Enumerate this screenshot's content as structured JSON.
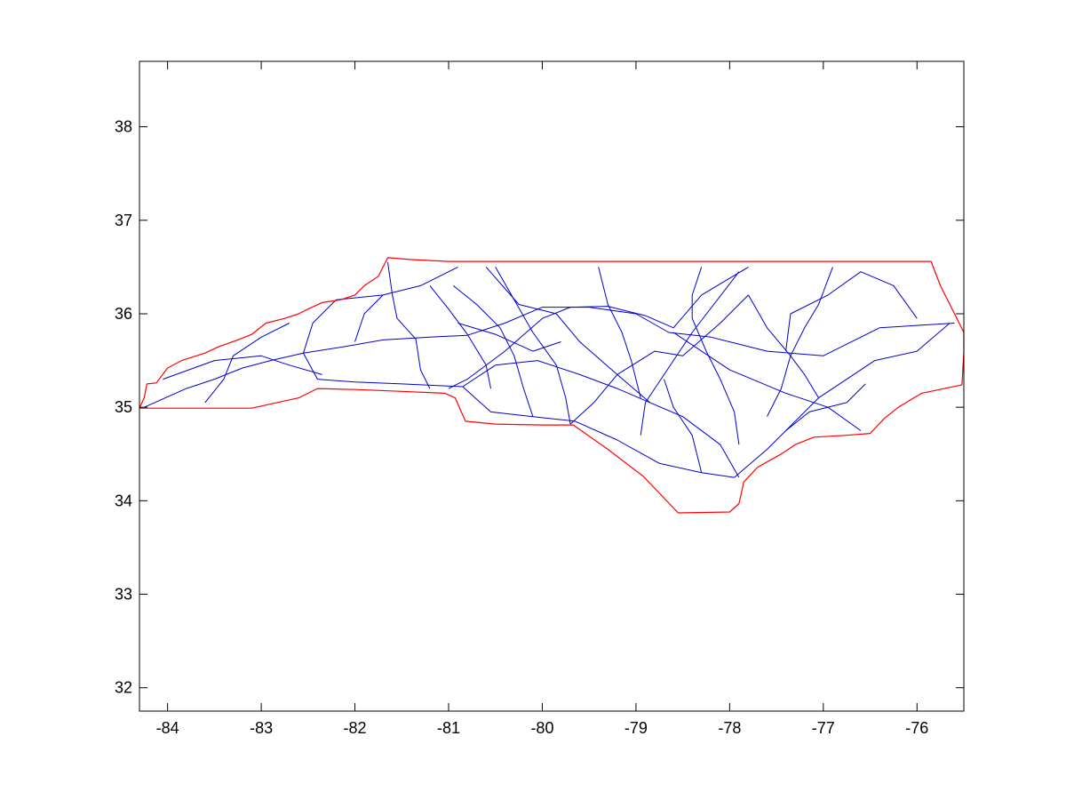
{
  "chart_data": {
    "type": "map",
    "title": "",
    "xlabel": "",
    "ylabel": "",
    "xlim": [
      -84.3,
      -75.5
    ],
    "ylim": [
      31.75,
      38.7
    ],
    "x_ticks": [
      -84,
      -83,
      -82,
      -81,
      -80,
      -79,
      -78,
      -77,
      -76
    ],
    "y_ticks": [
      32,
      33,
      34,
      35,
      36,
      37,
      38
    ],
    "grid": false,
    "colors": {
      "boundary": "#ff0000",
      "roads": "#0000cc",
      "axes": "#000000"
    },
    "layers": [
      {
        "name": "state-boundary",
        "color": "#ff0000",
        "points": [
          [
            -84.3,
            34.99
          ],
          [
            -84.25,
            35.1
          ],
          [
            -84.22,
            35.25
          ],
          [
            -84.12,
            35.26
          ],
          [
            -84.0,
            35.42
          ],
          [
            -83.85,
            35.5
          ],
          [
            -83.6,
            35.58
          ],
          [
            -83.45,
            35.65
          ],
          [
            -83.25,
            35.72
          ],
          [
            -83.1,
            35.78
          ],
          [
            -82.95,
            35.9
          ],
          [
            -82.75,
            35.95
          ],
          [
            -82.6,
            36.0
          ],
          [
            -82.5,
            36.05
          ],
          [
            -82.35,
            36.12
          ],
          [
            -82.15,
            36.15
          ],
          [
            -82.0,
            36.2
          ],
          [
            -81.9,
            36.3
          ],
          [
            -81.75,
            36.4
          ],
          [
            -81.65,
            36.6
          ],
          [
            -81.4,
            36.58
          ],
          [
            -81.0,
            36.56
          ],
          [
            -80.5,
            36.56
          ],
          [
            -80.0,
            36.56
          ],
          [
            -79.5,
            36.56
          ],
          [
            -79.0,
            36.56
          ],
          [
            -78.5,
            36.56
          ],
          [
            -78.0,
            36.56
          ],
          [
            -77.5,
            36.56
          ],
          [
            -77.0,
            36.56
          ],
          [
            -76.5,
            36.56
          ],
          [
            -75.85,
            36.56
          ],
          [
            -75.75,
            36.3
          ],
          [
            -75.6,
            36.0
          ],
          [
            -75.5,
            35.8
          ]
        ],
        "southern_border": [
          [
            -84.3,
            34.99
          ],
          [
            -83.75,
            34.99
          ],
          [
            -83.1,
            34.99
          ],
          [
            -82.6,
            35.1
          ],
          [
            -82.4,
            35.2
          ],
          [
            -82.0,
            35.19
          ],
          [
            -81.5,
            35.17
          ],
          [
            -81.04,
            35.15
          ],
          [
            -80.93,
            35.1
          ],
          [
            -80.82,
            34.85
          ],
          [
            -80.5,
            34.82
          ],
          [
            -80.0,
            34.81
          ],
          [
            -79.67,
            34.81
          ],
          [
            -79.3,
            34.55
          ],
          [
            -78.92,
            34.26
          ],
          [
            -78.55,
            33.87
          ],
          [
            -78.0,
            33.88
          ],
          [
            -77.9,
            33.97
          ]
        ],
        "coast": [
          [
            -77.9,
            33.97
          ],
          [
            -77.85,
            34.2
          ],
          [
            -77.7,
            34.36
          ],
          [
            -77.45,
            34.5
          ],
          [
            -77.3,
            34.6
          ],
          [
            -77.1,
            34.68
          ],
          [
            -76.75,
            34.7
          ],
          [
            -76.5,
            34.72
          ],
          [
            -76.35,
            34.88
          ],
          [
            -76.2,
            35.0
          ],
          [
            -75.95,
            35.15
          ],
          [
            -75.52,
            35.24
          ],
          [
            -75.5,
            35.6
          ],
          [
            -75.5,
            35.8
          ]
        ]
      },
      {
        "name": "road-network",
        "color": "#0000cc",
        "routes": [
          [
            [
              -84.25,
              35.0
            ],
            [
              -83.8,
              35.2
            ],
            [
              -83.5,
              35.3
            ],
            [
              -83.2,
              35.42
            ],
            [
              -82.9,
              35.5
            ],
            [
              -82.55,
              35.58
            ],
            [
              -82.1,
              35.65
            ],
            [
              -81.7,
              35.72
            ],
            [
              -81.2,
              35.75
            ],
            [
              -80.8,
              35.77
            ],
            [
              -80.4,
              35.9
            ],
            [
              -80.0,
              36.07
            ],
            [
              -79.5,
              36.07
            ],
            [
              -79.0,
              36.0
            ],
            [
              -78.65,
              35.8
            ],
            [
              -78.2,
              35.75
            ],
            [
              -77.6,
              35.6
            ],
            [
              -77.0,
              35.55
            ],
            [
              -76.4,
              35.85
            ],
            [
              -75.6,
              35.9
            ]
          ],
          [
            [
              -81.0,
              35.2
            ],
            [
              -80.8,
              35.3
            ],
            [
              -80.4,
              35.6
            ],
            [
              -80.0,
              35.95
            ],
            [
              -79.7,
              36.07
            ],
            [
              -79.3,
              36.08
            ],
            [
              -78.9,
              35.98
            ],
            [
              -78.6,
              35.85
            ],
            [
              -78.3,
              36.2
            ],
            [
              -77.8,
              36.5
            ]
          ],
          [
            [
              -77.9,
              34.25
            ],
            [
              -78.1,
              34.6
            ],
            [
              -78.5,
              34.9
            ],
            [
              -78.85,
              35.05
            ],
            [
              -79.2,
              35.35
            ],
            [
              -79.6,
              35.7
            ],
            [
              -79.85,
              36.0
            ],
            [
              -80.25,
              36.1
            ],
            [
              -80.6,
              36.5
            ]
          ],
          [
            [
              -78.95,
              34.7
            ],
            [
              -78.9,
              35.05
            ],
            [
              -78.6,
              35.5
            ],
            [
              -78.4,
              35.8
            ],
            [
              -77.9,
              36.45
            ]
          ],
          [
            [
              -82.55,
              35.58
            ],
            [
              -82.45,
              35.9
            ],
            [
              -82.2,
              36.15
            ],
            [
              -81.7,
              36.2
            ],
            [
              -81.3,
              36.3
            ],
            [
              -80.9,
              36.5
            ]
          ],
          [
            [
              -82.55,
              35.58
            ],
            [
              -82.4,
              35.3
            ],
            [
              -82.0,
              35.27
            ],
            [
              -81.5,
              35.25
            ],
            [
              -80.85,
              35.22
            ]
          ],
          [
            [
              -80.85,
              35.22
            ],
            [
              -80.5,
              35.45
            ],
            [
              -80.05,
              35.5
            ],
            [
              -79.6,
              35.35
            ],
            [
              -79.2,
              35.2
            ],
            [
              -78.85,
              35.05
            ]
          ],
          [
            [
              -80.85,
              35.22
            ],
            [
              -80.55,
              34.95
            ],
            [
              -80.1,
              34.9
            ],
            [
              -79.65,
              34.85
            ],
            [
              -79.2,
              34.65
            ],
            [
              -78.75,
              34.4
            ],
            [
              -78.3,
              34.3
            ],
            [
              -77.95,
              34.25
            ]
          ],
          [
            [
              -77.95,
              34.25
            ],
            [
              -77.6,
              34.55
            ],
            [
              -77.4,
              34.75
            ],
            [
              -77.05,
              35.1
            ],
            [
              -76.75,
              35.3
            ],
            [
              -76.45,
              35.5
            ],
            [
              -76.0,
              35.6
            ],
            [
              -75.65,
              35.9
            ]
          ],
          [
            [
              -78.6,
              35.8
            ],
            [
              -78.0,
              35.4
            ],
            [
              -77.4,
              35.15
            ],
            [
              -76.95,
              35.0
            ],
            [
              -76.6,
              34.75
            ]
          ],
          [
            [
              -77.4,
              35.6
            ],
            [
              -77.35,
              36.0
            ],
            [
              -76.95,
              36.2
            ],
            [
              -76.6,
              36.45
            ],
            [
              -76.25,
              36.3
            ],
            [
              -76.0,
              35.95
            ]
          ],
          [
            [
              -81.65,
              36.55
            ],
            [
              -81.6,
              36.2
            ],
            [
              -81.55,
              35.95
            ],
            [
              -81.35,
              35.73
            ],
            [
              -81.3,
              35.4
            ],
            [
              -81.2,
              35.2
            ]
          ],
          [
            [
              -80.5,
              36.5
            ],
            [
              -80.3,
              36.15
            ],
            [
              -80.1,
              35.8
            ],
            [
              -79.85,
              35.45
            ],
            [
              -79.75,
              35.1
            ],
            [
              -79.7,
              34.82
            ]
          ],
          [
            [
              -79.4,
              36.5
            ],
            [
              -79.3,
              36.1
            ],
            [
              -79.15,
              35.8
            ],
            [
              -79.05,
              35.5
            ],
            [
              -78.95,
              35.1
            ]
          ],
          [
            [
              -78.3,
              36.5
            ],
            [
              -78.4,
              36.2
            ],
            [
              -78.4,
              35.95
            ],
            [
              -78.25,
              35.6
            ],
            [
              -78.1,
              35.3
            ],
            [
              -77.95,
              34.95
            ],
            [
              -77.9,
              34.6
            ]
          ],
          [
            [
              -76.9,
              36.5
            ],
            [
              -77.05,
              36.1
            ],
            [
              -77.2,
              35.85
            ],
            [
              -77.35,
              35.55
            ],
            [
              -77.45,
              35.2
            ],
            [
              -77.6,
              34.9
            ]
          ],
          [
            [
              -83.6,
              35.05
            ],
            [
              -83.4,
              35.3
            ],
            [
              -83.3,
              35.55
            ],
            [
              -83.0,
              35.75
            ],
            [
              -82.7,
              35.9
            ]
          ],
          [
            [
              -84.05,
              35.3
            ],
            [
              -83.5,
              35.5
            ],
            [
              -83.0,
              35.55
            ],
            [
              -82.7,
              35.45
            ],
            [
              -82.35,
              35.35
            ]
          ],
          [
            [
              -82.0,
              35.7
            ],
            [
              -81.9,
              36.0
            ],
            [
              -81.7,
              36.2
            ]
          ],
          [
            [
              -81.2,
              36.3
            ],
            [
              -81.0,
              36.05
            ],
            [
              -80.8,
              35.78
            ],
            [
              -80.6,
              35.45
            ],
            [
              -80.55,
              35.2
            ]
          ],
          [
            [
              -80.9,
              35.9
            ],
            [
              -80.5,
              35.78
            ],
            [
              -80.1,
              35.6
            ],
            [
              -79.8,
              35.7
            ]
          ],
          [
            [
              -79.7,
              34.82
            ],
            [
              -79.45,
              35.05
            ],
            [
              -79.2,
              35.35
            ],
            [
              -78.8,
              35.6
            ],
            [
              -78.5,
              35.55
            ],
            [
              -78.1,
              35.9
            ],
            [
              -77.8,
              36.2
            ]
          ],
          [
            [
              -78.3,
              34.3
            ],
            [
              -78.4,
              34.7
            ],
            [
              -78.6,
              35.0
            ],
            [
              -78.7,
              35.3
            ]
          ],
          [
            [
              -77.4,
              34.75
            ],
            [
              -77.15,
              34.95
            ],
            [
              -76.75,
              35.05
            ],
            [
              -76.55,
              35.25
            ]
          ],
          [
            [
              -77.05,
              35.1
            ],
            [
              -77.2,
              35.35
            ],
            [
              -77.35,
              35.55
            ],
            [
              -77.6,
              35.85
            ],
            [
              -77.8,
              36.2
            ]
          ],
          [
            [
              -80.1,
              34.9
            ],
            [
              -80.2,
              35.2
            ],
            [
              -80.3,
              35.55
            ],
            [
              -80.45,
              35.85
            ],
            [
              -80.7,
              36.1
            ],
            [
              -80.95,
              36.3
            ]
          ]
        ]
      }
    ]
  }
}
